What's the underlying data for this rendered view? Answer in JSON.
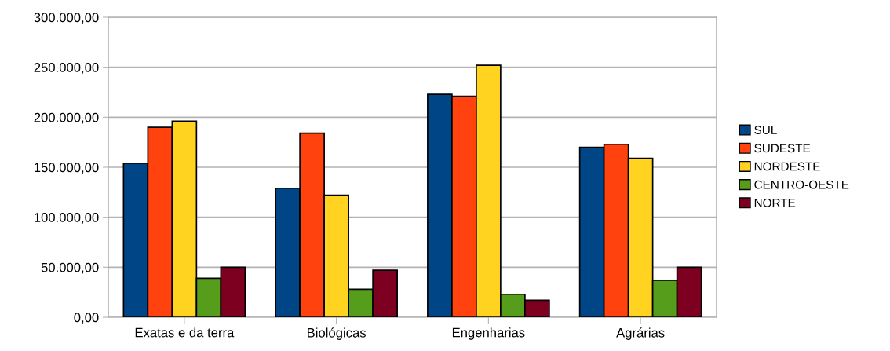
{
  "chart_data": {
    "type": "bar",
    "categories": [
      "Exatas e da terra",
      "Biológicas",
      "Engenharias",
      "Agrárias"
    ],
    "series": [
      {
        "name": "SUL",
        "color": "#004586",
        "values": [
          154000,
          129000,
          223000,
          170000
        ]
      },
      {
        "name": "SUDESTE",
        "color": "#ff420e",
        "values": [
          190000,
          184000,
          221000,
          173000
        ]
      },
      {
        "name": "NORDESTE",
        "color": "#ffd320",
        "values": [
          196000,
          122000,
          252000,
          159000
        ]
      },
      {
        "name": "CENTRO-OESTE",
        "color": "#579d1c",
        "values": [
          39000,
          28000,
          23000,
          37000
        ]
      },
      {
        "name": "NORTE",
        "color": "#7e0021",
        "values": [
          50000,
          47000,
          17000,
          50000
        ]
      }
    ],
    "ylim": [
      0,
      300000
    ],
    "yticks": [
      {
        "value": 0,
        "label": "0,00"
      },
      {
        "value": 50000,
        "label": "50.000,00"
      },
      {
        "value": 100000,
        "label": "100.000,00"
      },
      {
        "value": 150000,
        "label": "150.000,00"
      },
      {
        "value": 200000,
        "label": "200.000,00"
      },
      {
        "value": 250000,
        "label": "250.000,00"
      },
      {
        "value": 300000,
        "label": "300.000,00"
      }
    ],
    "grid": "y",
    "legend": "right"
  }
}
